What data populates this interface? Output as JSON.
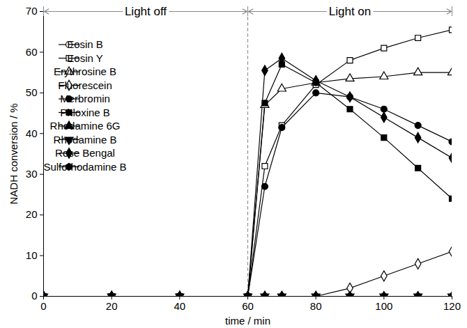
{
  "chart_data": {
    "type": "line",
    "x_label": "time / min",
    "y_label": "NADH conversion / %",
    "xlim": [
      0,
      120
    ],
    "xticks": [
      0,
      20,
      40,
      60,
      80,
      100,
      120
    ],
    "ylim": [
      0,
      70
    ],
    "yticks": [
      0,
      10,
      20,
      30,
      40,
      50,
      60,
      70
    ],
    "grid": false,
    "legend": "top-left",
    "annotations": [
      {
        "text": "Light off",
        "x": [
          0,
          60
        ]
      },
      {
        "text": "Light on",
        "x": [
          60,
          120
        ]
      }
    ],
    "x": [
      0,
      20,
      40,
      60,
      65,
      70,
      80,
      90,
      100,
      110,
      120
    ],
    "series": [
      {
        "name": "Eosin B",
        "color": "#000000",
        "marker": "circle-open",
        "values": [
          0,
          0,
          0,
          0,
          0,
          0,
          0,
          0,
          0,
          0,
          0
        ]
      },
      {
        "name": "Eosin Y",
        "color": "#000000",
        "marker": "square-open",
        "values": [
          0,
          0,
          0,
          0,
          32,
          42,
          52,
          58,
          61,
          63.5,
          65.5
        ]
      },
      {
        "name": "Erythrosine B",
        "color": "#000000",
        "marker": "triangle-open",
        "values": [
          0,
          0,
          0,
          0,
          47,
          51,
          52.5,
          53.5,
          54,
          55,
          55
        ]
      },
      {
        "name": "Fluorescein",
        "color": "#000000",
        "marker": "diamond-open",
        "values": [
          0,
          0,
          0,
          0,
          0,
          0,
          0,
          2,
          5,
          8,
          11
        ]
      },
      {
        "name": "Merbromin",
        "color": "#000000",
        "marker": "circle",
        "values": [
          0,
          0,
          0,
          0,
          27,
          41.5,
          50,
          49,
          46,
          42,
          38
        ]
      },
      {
        "name": "Phloxine B",
        "color": "#000000",
        "marker": "square",
        "values": [
          0,
          0,
          0,
          0,
          47.5,
          57,
          52.5,
          46,
          39,
          31.5,
          24
        ]
      },
      {
        "name": "Rhodamine 6G",
        "color": "#000000",
        "marker": "triangle",
        "values": [
          0,
          0,
          0,
          0,
          0,
          0,
          0,
          0,
          0,
          0,
          0
        ]
      },
      {
        "name": "Rhodamine B",
        "color": "#000000",
        "marker": "triangle-down",
        "values": [
          0,
          0,
          0,
          0,
          0,
          0,
          0,
          0,
          0,
          0,
          0
        ]
      },
      {
        "name": "Rose Bengal",
        "color": "#000000",
        "marker": "diamond",
        "values": [
          0,
          0,
          0,
          0,
          55.5,
          58.5,
          53,
          49,
          44,
          39,
          34
        ]
      },
      {
        "name": "Sulforhodamine B",
        "color": "#000000",
        "marker": "hexagon",
        "values": [
          0,
          0,
          0,
          0,
          0,
          0,
          0,
          0,
          0,
          0,
          0
        ]
      }
    ]
  }
}
